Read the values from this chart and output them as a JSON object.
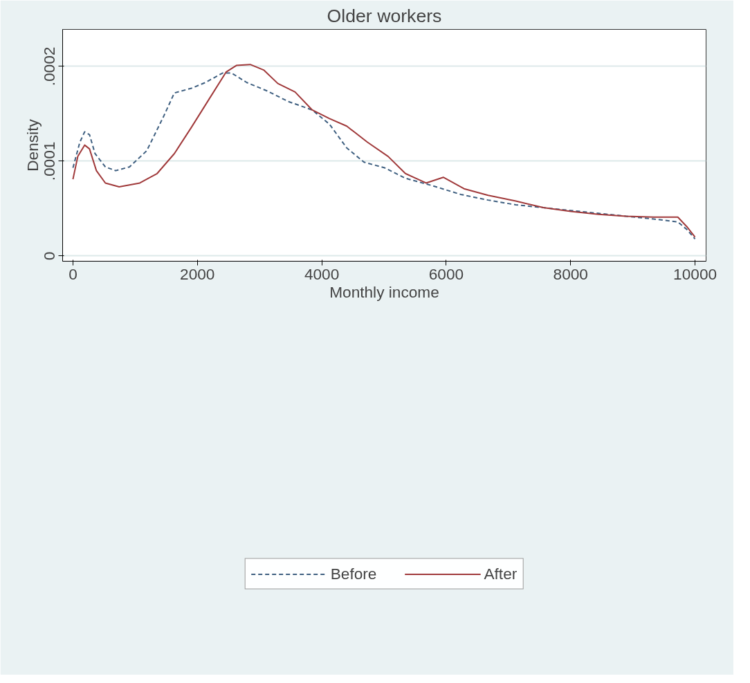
{
  "chart_data": {
    "type": "line",
    "title": "Older workers",
    "xlabel": "Monthly income",
    "ylabel": "Density",
    "xlim": [
      -166,
      10177
    ],
    "ylim": [
      -5.5e-06,
      0.000239
    ],
    "xticks": [
      0,
      2000,
      4000,
      6000,
      8000,
      10000
    ],
    "yticks": [
      {
        "value": 0,
        "label": "0"
      },
      {
        "value": 0.0001,
        "label": ".0001"
      },
      {
        "value": 0.0002,
        "label": ".0002"
      }
    ],
    "grid": "y",
    "legend": "bottom",
    "marker": "none",
    "series": [
      {
        "name": "Before",
        "color": "#3e5f80",
        "line_style": "dashed",
        "x": [
          0,
          111,
          188,
          266,
          355,
          521,
          687,
          909,
          1186,
          1463,
          1630,
          1907,
          2129,
          2406,
          2550,
          2794,
          3126,
          3459,
          3847,
          4124,
          4401,
          4678,
          5011,
          5344,
          5787,
          6231,
          6674,
          7118,
          7561,
          8004,
          8448,
          8891,
          9335,
          9723,
          9867,
          10000
        ],
        "values": [
          9.3e-05,
          0.00012,
          0.000131,
          0.000128,
          0.000108,
          9.4e-05,
          9e-05,
          9.4e-05,
          0.000111,
          0.000148,
          0.000172,
          0.000177,
          0.000183,
          0.000193,
          0.000193,
          0.000183,
          0.000174,
          0.000163,
          0.000154,
          0.000139,
          0.000114,
          9.9e-05,
          9.3e-05,
          8.2e-05,
          7.4e-05,
          6.5e-05,
          5.9e-05,
          5.4e-05,
          5.1e-05,
          4.8e-05,
          4.5e-05,
          4.2e-05,
          3.9e-05,
          3.6e-05,
          2.8e-05,
          1.8e-05
        ]
      },
      {
        "name": "After",
        "color": "#a0393a",
        "line_style": "solid",
        "x": [
          0,
          78,
          188,
          266,
          377,
          521,
          743,
          1075,
          1353,
          1630,
          1907,
          2184,
          2461,
          2627,
          2849,
          3071,
          3293,
          3570,
          3847,
          4124,
          4401,
          4734,
          5067,
          5344,
          5676,
          5953,
          6286,
          6674,
          7118,
          7561,
          8004,
          8448,
          8891,
          9335,
          9723,
          9867,
          10000
        ],
        "values": [
          8.1e-05,
          0.000105,
          0.000117,
          0.000113,
          9e-05,
          7.7e-05,
          7.3e-05,
          7.7e-05,
          8.7e-05,
          0.000108,
          0.000136,
          0.000165,
          0.000194,
          0.000201,
          0.000202,
          0.000196,
          0.000182,
          0.000173,
          0.000154,
          0.000145,
          0.000137,
          0.00012,
          0.000105,
          8.7e-05,
          7.7e-05,
          8.3e-05,
          7.1e-05,
          6.4e-05,
          5.8e-05,
          5.1e-05,
          4.7e-05,
          4.4e-05,
          4.2e-05,
          4.1e-05,
          4.1e-05,
          3.1e-05,
          2e-05
        ]
      }
    ]
  }
}
